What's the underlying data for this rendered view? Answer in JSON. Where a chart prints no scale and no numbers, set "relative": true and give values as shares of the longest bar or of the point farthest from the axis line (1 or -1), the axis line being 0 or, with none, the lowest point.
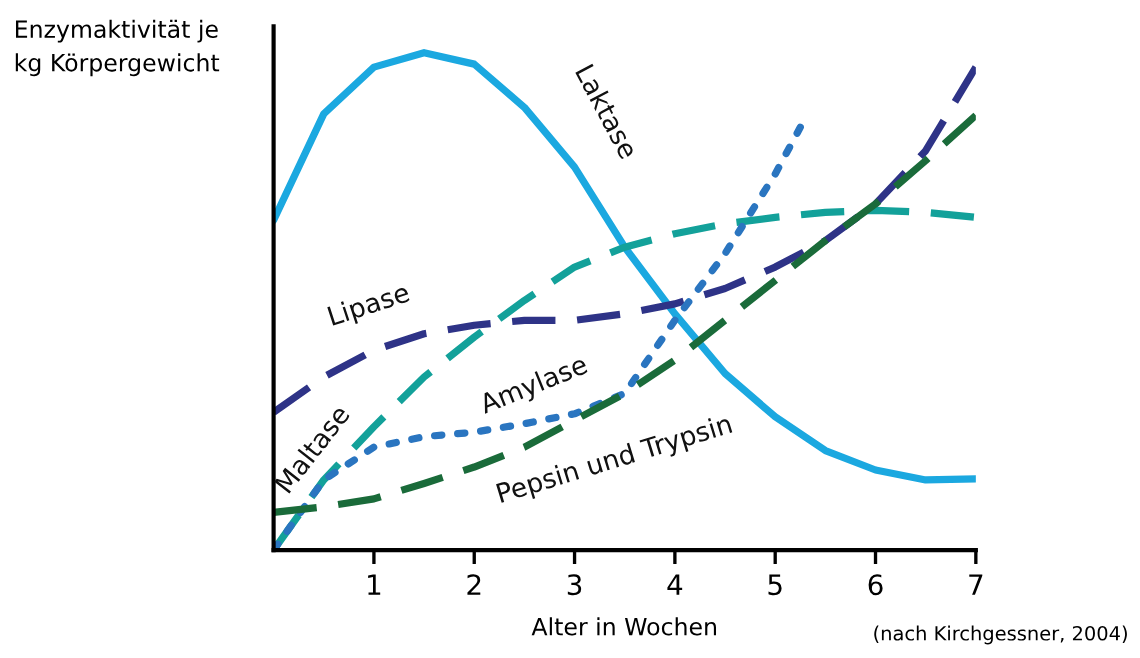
{
  "chart_data": {
    "type": "line",
    "relative": true,
    "ylabel": "Enzymaktivität je\nkg Körpergewicht",
    "xlabel": "Alter in Wochen",
    "annotations": [
      "(nach Kirchgessner, 2004)"
    ],
    "x": [
      0,
      0.5,
      1,
      1.5,
      2,
      2.5,
      3,
      3.5,
      4,
      4.5,
      5,
      5.5,
      6,
      6.5,
      7
    ],
    "xlim": [
      0,
      7
    ],
    "xticks": [
      1,
      2,
      3,
      4,
      5,
      6,
      7
    ],
    "grid": false,
    "legend": false,
    "marker": "none",
    "series": [
      {
        "name": "Laktase",
        "color": "#1ba8e0",
        "line_style": "solid",
        "values": [
          0.663,
          0.877,
          0.971,
          1.0,
          0.977,
          0.89,
          0.77,
          0.609,
          0.475,
          0.355,
          0.268,
          0.2,
          0.161,
          0.141,
          0.143
        ]
      },
      {
        "name": "Lipase",
        "color": "#2e3387",
        "line_style": "dashed",
        "values": [
          0.277,
          0.348,
          0.402,
          0.435,
          0.452,
          0.462,
          0.462,
          0.475,
          0.495,
          0.526,
          0.569,
          0.622,
          0.696,
          0.803,
          0.971
        ]
      },
      {
        "name": "Maltase",
        "color": "#13a19a",
        "line_style": "dashed",
        "values": [
          0,
          0.141,
          0.248,
          0.348,
          0.428,
          0.502,
          0.569,
          0.609,
          0.636,
          0.656,
          0.669,
          0.679,
          0.683,
          0.679,
          0.669
        ]
      },
      {
        "name": "Amylase",
        "color": "#2a75c0",
        "line_style": "dotted",
        "x": [
          0,
          0.5,
          1,
          1.5,
          2,
          2.5,
          3,
          3.5,
          4,
          4.5,
          5,
          5.25
        ],
        "values": [
          0,
          0.141,
          0.207,
          0.228,
          0.237,
          0.254,
          0.274,
          0.315,
          0.462,
          0.596,
          0.756,
          0.85
        ]
      },
      {
        "name": "Pepsin und Trypsin",
        "color": "#1a6b3a",
        "line_style": "dashed",
        "values": [
          0.076,
          0.087,
          0.103,
          0.134,
          0.167,
          0.207,
          0.261,
          0.315,
          0.382,
          0.462,
          0.542,
          0.622,
          0.696,
          0.783,
          0.874
        ]
      }
    ]
  }
}
